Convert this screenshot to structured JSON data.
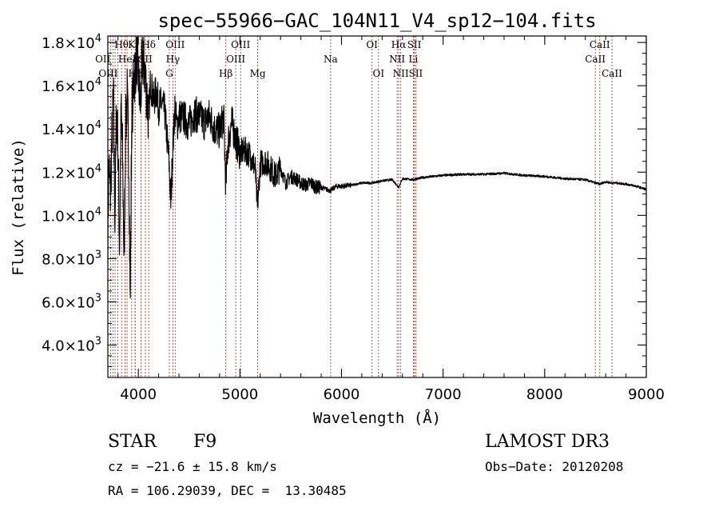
{
  "chart_data": {
    "type": "line",
    "title": "spec−55966−GAC_104N11_V4_sp12−104.fits",
    "xlabel": "Wavelength (Å)",
    "ylabel": "Flux (relative)",
    "xlim": [
      3700,
      9000
    ],
    "ylim": [
      2500,
      18300
    ],
    "xticks": [
      4000,
      5000,
      6000,
      7000,
      8000,
      9000
    ],
    "xtick_labels": [
      "4000",
      "5000",
      "6000",
      "7000",
      "8000",
      "9000"
    ],
    "yticks": [
      4000,
      6000,
      8000,
      10000,
      12000,
      14000,
      16000,
      18000
    ],
    "ytick_labels": [
      {
        "mantissa": "4.0×10",
        "exp": "3"
      },
      {
        "mantissa": "6.0×10",
        "exp": "3"
      },
      {
        "mantissa": "8.0×10",
        "exp": "3"
      },
      {
        "mantissa": "1.0×10",
        "exp": "4"
      },
      {
        "mantissa": "1.2×10",
        "exp": "4"
      },
      {
        "mantissa": "1.4×10",
        "exp": "4"
      },
      {
        "mantissa": "1.6×10",
        "exp": "4"
      },
      {
        "mantissa": "1.8×10",
        "exp": "4"
      }
    ],
    "spectrum": {
      "x": [
        3700,
        3710,
        3725,
        3740,
        3755,
        3770,
        3785,
        3800,
        3815,
        3830,
        3845,
        3860,
        3875,
        3890,
        3905,
        3920,
        3935,
        3950,
        3968,
        3985,
        4000,
        4020,
        4040,
        4060,
        4080,
        4102,
        4120,
        4150,
        4180,
        4200,
        4230,
        4260,
        4300,
        4320,
        4340,
        4360,
        4380,
        4400,
        4450,
        4500,
        4550,
        4600,
        4650,
        4700,
        4750,
        4800,
        4840,
        4861,
        4880,
        4920,
        4960,
        5000,
        5050,
        5100,
        5150,
        5172,
        5200,
        5250,
        5300,
        5350,
        5400,
        5450,
        5500,
        5550,
        5600,
        5650,
        5700,
        5750,
        5800,
        5850,
        5893,
        5950,
        6000,
        6100,
        6200,
        6300,
        6400,
        6500,
        6563,
        6600,
        6700,
        6800,
        6900,
        7000,
        7200,
        7400,
        7600,
        7800,
        8000,
        8200,
        8400,
        8498,
        8542,
        8600,
        8662,
        8700,
        8800,
        8900,
        9000
      ],
      "y": [
        9200,
        12500,
        10800,
        13500,
        15500,
        9800,
        15000,
        13200,
        8500,
        14800,
        12800,
        7800,
        14000,
        15500,
        13000,
        5800,
        14500,
        15800,
        16800,
        17500,
        16500,
        15000,
        17300,
        16800,
        15800,
        14500,
        16200,
        15300,
        15800,
        15000,
        15200,
        14800,
        12600,
        10600,
        13200,
        15000,
        14100,
        14600,
        14500,
        14200,
        14700,
        14600,
        14300,
        14600,
        14000,
        13900,
        14600,
        11300,
        13300,
        14300,
        13500,
        12900,
        13000,
        12800,
        12200,
        10300,
        12400,
        12500,
        12200,
        11800,
        12200,
        11500,
        11800,
        11700,
        11500,
        11400,
        11500,
        11300,
        11300,
        11200,
        11150,
        11350,
        11350,
        11400,
        11500,
        11500,
        11600,
        11650,
        11300,
        11700,
        11650,
        11750,
        11800,
        11850,
        11900,
        11900,
        11950,
        11850,
        11800,
        11700,
        11650,
        11500,
        11450,
        11550,
        11500,
        11500,
        11450,
        11350,
        11200
      ]
    },
    "spectral_lines": [
      {
        "x": 3727,
        "label": "OII",
        "row": 1,
        "align": "end"
      },
      {
        "x": 3750,
        "label": "",
        "row": 0,
        "align": "middle"
      },
      {
        "x": 3771,
        "label": "",
        "row": 0,
        "align": "middle"
      },
      {
        "x": 3798,
        "label": "OIII",
        "row": 2,
        "align": "end"
      },
      {
        "x": 3835,
        "label": "Hθ",
        "row": 0,
        "align": "middle"
      },
      {
        "x": 3869,
        "label": "",
        "row": 0,
        "align": "middle"
      },
      {
        "x": 3889,
        "label": "HeI",
        "row": 1,
        "align": "middle"
      },
      {
        "x": 3934,
        "label": "K",
        "row": 0,
        "align": "middle"
      },
      {
        "x": 3970,
        "label": "Hη",
        "row": 2,
        "align": "middle"
      },
      {
        "x": 3968,
        "label": "H",
        "row": 2,
        "align": "start"
      },
      {
        "x": 4026,
        "label": "",
        "row": 0,
        "align": "middle"
      },
      {
        "x": 4070,
        "label": "SII",
        "row": 1,
        "align": "middle"
      },
      {
        "x": 4102,
        "label": "Hδ",
        "row": 0,
        "align": "middle"
      },
      {
        "x": 4305,
        "label": "G",
        "row": 2,
        "align": "middle"
      },
      {
        "x": 4340,
        "label": "Hγ",
        "row": 1,
        "align": "middle"
      },
      {
        "x": 4363,
        "label": "OIII",
        "row": 0,
        "align": "middle"
      },
      {
        "x": 4861,
        "label": "Hβ",
        "row": 2,
        "align": "middle"
      },
      {
        "x": 4959,
        "label": "OIII",
        "row": 1,
        "align": "middle"
      },
      {
        "x": 5007,
        "label": "OIII",
        "row": 0,
        "align": "middle"
      },
      {
        "x": 5175,
        "label": "Mg",
        "row": 2,
        "align": "middle"
      },
      {
        "x": 5893,
        "label": "Na",
        "row": 1,
        "align": "middle"
      },
      {
        "x": 6300,
        "label": "OI",
        "row": 0,
        "align": "middle"
      },
      {
        "x": 6364,
        "label": "OI",
        "row": 2,
        "align": "middle"
      },
      {
        "x": 6548,
        "label": "NII",
        "row": 1,
        "align": "middle"
      },
      {
        "x": 6563,
        "label": "Hα",
        "row": 0,
        "align": "middle"
      },
      {
        "x": 6583,
        "label": "NII",
        "row": 2,
        "align": "middle"
      },
      {
        "x": 6707,
        "label": "Li",
        "row": 1,
        "align": "middle"
      },
      {
        "x": 6716,
        "label": "SII",
        "row": 0,
        "align": "middle"
      },
      {
        "x": 6731,
        "label": "SII",
        "row": 2,
        "align": "middle"
      },
      {
        "x": 8498,
        "label": "CaII",
        "row": 1,
        "align": "middle"
      },
      {
        "x": 8542,
        "label": "CaII",
        "row": 0,
        "align": "middle"
      },
      {
        "x": 8662,
        "label": "CaII",
        "row": 2,
        "align": "middle"
      }
    ]
  },
  "info": {
    "object_class": "STAR",
    "subclass": "F9",
    "survey": "LAMOST DR3",
    "redshift": "cz = −21.6 ± 15.8 km/s",
    "obs_date": "Obs−Date: 20120208",
    "coords": "RA = 106.29039, DEC =  13.30485"
  },
  "colors": {
    "line_marker": "#c0392b",
    "spectrum": "#000000"
  }
}
